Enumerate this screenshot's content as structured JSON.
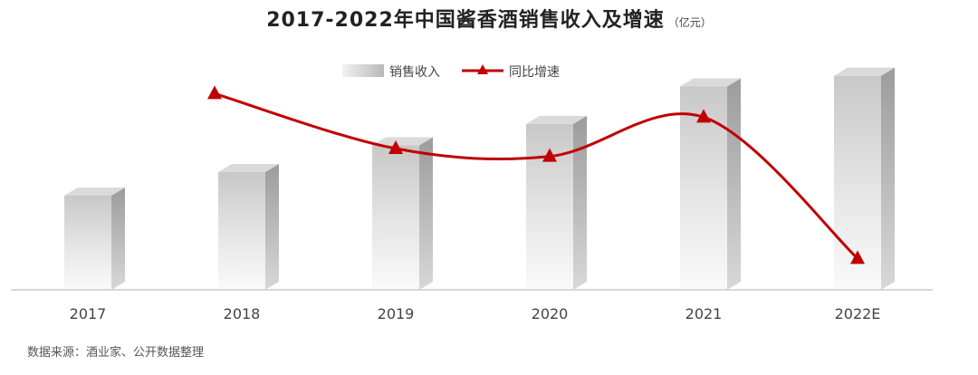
{
  "chart_data": {
    "type": "bar",
    "title": "2017-2022年中国酱香酒销售收入及增速",
    "unit": "（亿元）",
    "categories": [
      "2017",
      "2018",
      "2019",
      "2020",
      "2021",
      "2022E"
    ],
    "series": [
      {
        "name": "销售收入",
        "type": "bar",
        "values": [
          880,
          1100,
          1350,
          1550,
          1900,
          2000
        ]
      },
      {
        "name": "同比增速",
        "type": "line",
        "values": [
          null,
          25,
          18,
          17,
          22,
          4
        ]
      }
    ],
    "bar_ylim": [
      0,
      2200
    ],
    "line_ylim": [
      0,
      30
    ],
    "grid": false,
    "legend": "top-center",
    "colors": {
      "bar_light": "#f4f4f4",
      "bar_mid": "#cfcfcf",
      "bar_dark": "#9a9a9a",
      "line": "#c00000",
      "axis": "#cccccc"
    }
  },
  "source": "数据来源：酒业家、公开数据整理"
}
